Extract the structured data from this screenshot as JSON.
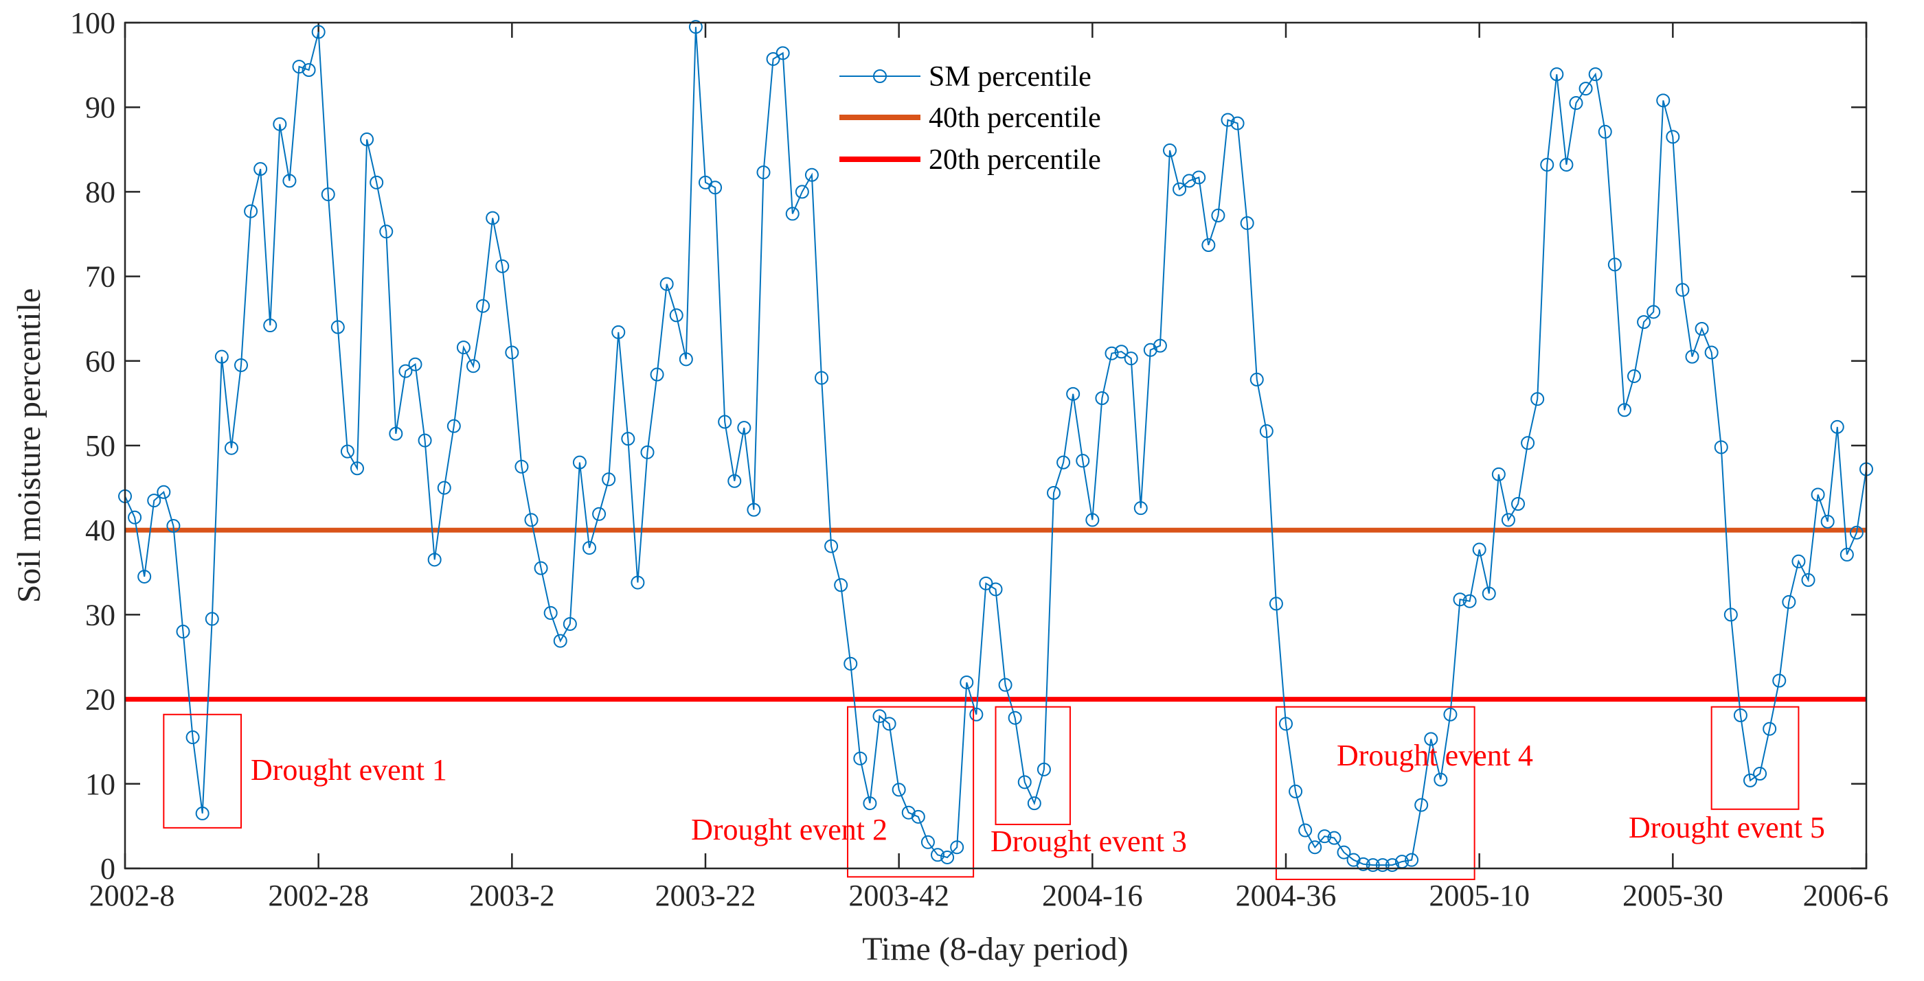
{
  "chart_data": {
    "type": "line",
    "title": "",
    "xlabel": "Time (8-day period)",
    "ylabel": "Soil moisture percentile",
    "ylim": [
      0,
      100
    ],
    "x_index_range": [
      0,
      180
    ],
    "yticks": [
      0,
      10,
      20,
      30,
      40,
      50,
      60,
      70,
      80,
      90,
      100
    ],
    "xticks": [
      {
        "label": "2002-8",
        "index": 0
      },
      {
        "label": "2002-28",
        "index": 20
      },
      {
        "label": "2003-2",
        "index": 40
      },
      {
        "label": "2003-22",
        "index": 60
      },
      {
        "label": "2003-42",
        "index": 80
      },
      {
        "label": "2004-16",
        "index": 100
      },
      {
        "label": "2004-36",
        "index": 120
      },
      {
        "label": "2005-10",
        "index": 140
      },
      {
        "label": "2005-30",
        "index": 160
      },
      {
        "label": "2006-6",
        "index": 180
      }
    ],
    "series": [
      {
        "name": "SM percentile",
        "color": "#0072BD",
        "marker": "circle",
        "values": [
          44,
          41.5,
          34.5,
          43.5,
          44.5,
          40.5,
          28,
          15.5,
          6.5,
          29.5,
          60.5,
          49.7,
          59.5,
          77.7,
          82.7,
          64.2,
          88,
          81.3,
          94.8,
          94.4,
          98.9,
          79.7,
          64,
          49.3,
          47.3,
          86.2,
          81.1,
          75.3,
          51.4,
          58.8,
          59.6,
          50.6,
          36.5,
          45,
          52.3,
          61.6,
          59.4,
          66.5,
          76.9,
          71.2,
          61,
          47.5,
          41.2,
          35.5,
          30.2,
          26.9,
          28.9,
          48,
          37.9,
          41.9,
          46,
          63.4,
          50.8,
          33.8,
          49.2,
          58.4,
          69.1,
          65.4,
          60.2,
          99.5,
          81.1,
          80.5,
          52.8,
          45.8,
          52.1,
          42.4,
          82.3,
          95.7,
          96.4,
          77.4,
          80,
          82,
          58,
          38.1,
          33.5,
          24.2,
          13,
          7.7,
          18,
          17.1,
          9.3,
          6.6,
          6.1,
          3.1,
          1.6,
          1.3,
          2.5,
          22,
          18.2,
          33.7,
          33,
          21.7,
          17.8,
          10.2,
          7.7,
          11.7,
          44.4,
          48,
          56.1,
          48.2,
          41.2,
          55.6,
          60.9,
          61.1,
          60.3,
          42.6,
          61.3,
          61.8,
          84.9,
          80.3,
          81.3,
          81.7,
          73.7,
          77.2,
          88.5,
          88.1,
          76.3,
          57.8,
          51.7,
          31.3,
          17.1,
          9.1,
          4.5,
          2.5,
          3.8,
          3.6,
          1.9,
          1,
          0.5,
          0.4,
          0.4,
          0.4,
          0.8,
          1,
          7.5,
          15.3,
          10.5,
          18.2,
          31.8,
          31.6,
          37.7,
          32.5,
          46.6,
          41.2,
          43.1,
          50.3,
          55.5,
          83.2,
          93.9,
          83.2,
          90.5,
          92.2,
          93.9,
          87.1,
          71.4,
          54.2,
          58.2,
          64.6,
          65.8,
          90.8,
          86.5,
          68.4,
          60.5,
          63.8,
          61,
          49.8,
          30,
          18.1,
          10.4,
          11.2,
          16.5,
          22.2,
          31.5,
          36.3,
          34.1,
          44.2,
          41,
          52.2,
          37.1,
          39.7,
          47.2
        ]
      },
      {
        "name": "40th percentile",
        "color": "#D95319",
        "constant": 40
      },
      {
        "name": "20th percentile",
        "color": "#FF0000",
        "constant": 20
      }
    ],
    "legend": {
      "position": "top-center",
      "entries": [
        "SM percentile",
        "40th percentile",
        "20th percentile"
      ]
    },
    "annotations": [
      {
        "label": "Drought event 1",
        "x_range": [
          4,
          12
        ],
        "y_range": [
          4.8,
          18.2
        ],
        "color": "#FF0000"
      },
      {
        "label": "Drought event 2",
        "x_range": [
          74.7,
          87.7
        ],
        "y_range": [
          -1,
          19.1
        ],
        "color": "#FF0000"
      },
      {
        "label": "Drought event 3",
        "x_range": [
          90,
          97.7
        ],
        "y_range": [
          5.2,
          19.1
        ],
        "color": "#FF0000"
      },
      {
        "label": "Drought event 4",
        "x_range": [
          119,
          139.5
        ],
        "y_range": [
          -1.3,
          19.1
        ],
        "color": "#FF0000"
      },
      {
        "label": "Drought event 5",
        "x_range": [
          164,
          173
        ],
        "y_range": [
          7,
          19.1
        ],
        "color": "#FF0000"
      }
    ]
  }
}
